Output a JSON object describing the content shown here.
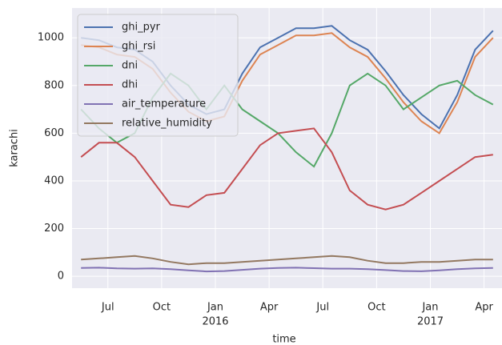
{
  "chart_data": {
    "type": "line",
    "xlabel": "time",
    "ylabel": "karachi",
    "x": [
      "2015-05",
      "2015-06",
      "2015-07",
      "2015-08",
      "2015-09",
      "2015-10",
      "2015-11",
      "2015-12",
      "2016-01",
      "2016-02",
      "2016-03",
      "2016-04",
      "2016-05",
      "2016-06",
      "2016-07",
      "2016-08",
      "2016-09",
      "2016-10",
      "2016-11",
      "2016-12",
      "2017-01",
      "2017-02",
      "2017-03",
      "2017-04"
    ],
    "xlim": [
      "2015-05",
      "2017-05"
    ],
    "xticks": [
      {
        "value": "2015-07",
        "label": "Jul"
      },
      {
        "value": "2015-10",
        "label": "Oct"
      },
      {
        "value": "2016-01",
        "label": "Jan",
        "sublabel": "2016"
      },
      {
        "value": "2016-04",
        "label": "Apr"
      },
      {
        "value": "2016-07",
        "label": "Jul"
      },
      {
        "value": "2016-10",
        "label": "Oct"
      },
      {
        "value": "2017-01",
        "label": "Jan",
        "sublabel": "2017"
      },
      {
        "value": "2017-04",
        "label": "Apr"
      }
    ],
    "ylim": [
      -50,
      1125
    ],
    "yticks": [
      0,
      200,
      400,
      600,
      800,
      1000
    ],
    "grid": true,
    "legend": "upper left",
    "series": [
      {
        "name": "ghi_pyr",
        "color": "#4c72b0",
        "values": [
          1000,
          990,
          960,
          950,
          900,
          800,
          720,
          680,
          700,
          850,
          960,
          1000,
          1040,
          1040,
          1050,
          990,
          950,
          860,
          760,
          680,
          620,
          760,
          950,
          1030
        ]
      },
      {
        "name": "ghi_rsi",
        "color": "#dd8452",
        "values": [
          970,
          960,
          930,
          920,
          870,
          770,
          690,
          650,
          670,
          820,
          930,
          970,
          1010,
          1010,
          1020,
          960,
          920,
          830,
          730,
          650,
          600,
          730,
          920,
          1000
        ]
      },
      {
        "name": "dni",
        "color": "#55a868",
        "values": [
          700,
          620,
          560,
          600,
          750,
          850,
          800,
          700,
          800,
          700,
          650,
          600,
          520,
          460,
          600,
          800,
          850,
          800,
          700,
          750,
          800,
          820,
          760,
          720
        ]
      },
      {
        "name": "dhi",
        "color": "#c44e52",
        "values": [
          500,
          560,
          560,
          500,
          400,
          300,
          290,
          340,
          350,
          450,
          550,
          600,
          610,
          620,
          520,
          360,
          300,
          280,
          300,
          350,
          400,
          450,
          500,
          510
        ]
      },
      {
        "name": "air_temperature",
        "color": "#8172b3",
        "values": [
          35,
          36,
          33,
          32,
          33,
          30,
          25,
          20,
          22,
          27,
          32,
          35,
          36,
          34,
          32,
          32,
          30,
          26,
          22,
          21,
          25,
          30,
          33,
          35
        ]
      },
      {
        "name": "relative_humidity",
        "color": "#937860",
        "values": [
          70,
          75,
          80,
          85,
          75,
          60,
          50,
          55,
          55,
          60,
          65,
          70,
          75,
          80,
          85,
          80,
          65,
          55,
          55,
          60,
          60,
          65,
          70,
          70
        ]
      }
    ]
  }
}
